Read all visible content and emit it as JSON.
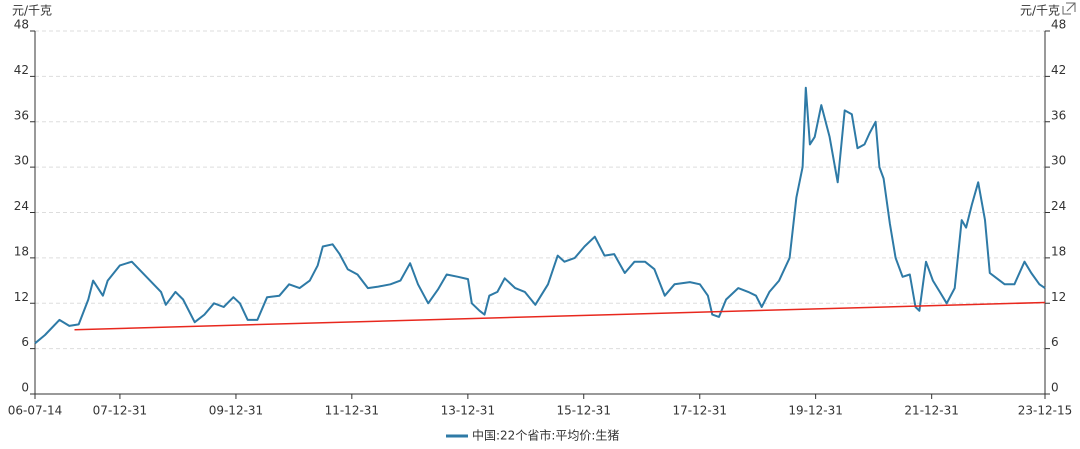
{
  "chart_data": {
    "type": "line",
    "y_label": "元/千克",
    "y2_label": "元/千克",
    "xlim": [
      "06-07-14",
      "23-12-15"
    ],
    "xticks": [
      "06-07-14",
      "07-12-31",
      "09-12-31",
      "11-12-31",
      "13-12-31",
      "15-12-31",
      "17-12-31",
      "19-12-31",
      "21-12-31",
      "23-12-15"
    ],
    "ylim": [
      0,
      48
    ],
    "yticks": [
      0,
      6,
      12,
      18,
      24,
      30,
      36,
      42,
      48
    ],
    "y2lim": [
      0,
      48
    ],
    "y2ticks": [
      0,
      6,
      12,
      18,
      24,
      30,
      36,
      42,
      48
    ],
    "grid": true,
    "series": [
      {
        "name": "中国:22个省市:平均价:生猪",
        "color": "#2e7aa6",
        "x": [
          "06-07-14",
          "06-09-15",
          "06-12-15",
          "07-02-15",
          "07-04-15",
          "07-06-15",
          "07-07-15",
          "07-09-15",
          "07-10-15",
          "07-12-31",
          "08-03-15",
          "08-06-15",
          "08-09-15",
          "08-10-15",
          "08-12-15",
          "09-02-01",
          "09-04-15",
          "09-06-15",
          "09-08-15",
          "09-10-15",
          "09-12-15",
          "10-01-25",
          "10-03-15",
          "10-05-15",
          "10-07-15",
          "10-10-01",
          "10-12-01",
          "11-02-05",
          "11-04-10",
          "11-05-30",
          "11-07-01",
          "11-09-01",
          "11-10-15",
          "11-12-05",
          "12-02-05",
          "12-04-10",
          "12-06-15",
          "12-08-30",
          "12-11-01",
          "13-01-01",
          "13-02-20",
          "13-04-25",
          "13-06-25",
          "13-08-20",
          "13-10-30",
          "14-01-01",
          "14-01-25",
          "14-03-15",
          "14-04-15",
          "14-05-15",
          "14-07-05",
          "14-08-20",
          "14-10-25",
          "14-12-25",
          "15-03-01",
          "15-05-20",
          "15-07-20",
          "15-09-01",
          "15-11-05",
          "16-01-05",
          "16-03-10",
          "16-05-10",
          "16-07-10",
          "16-09-15",
          "16-11-15",
          "17-01-20",
          "17-03-20",
          "17-05-25",
          "17-07-25",
          "17-10-30",
          "18-01-01",
          "18-02-20",
          "18-03-20",
          "18-05-01",
          "18-06-15",
          "18-08-30",
          "18-11-01",
          "18-12-20",
          "19-01-25",
          "19-03-15",
          "19-05-15",
          "19-07-20",
          "19-09-01",
          "19-10-10",
          "19-10-30",
          "19-11-25",
          "19-12-25",
          "20-02-05",
          "20-03-28",
          "20-05-18",
          "20-07-01",
          "20-08-15",
          "20-09-20",
          "20-11-03",
          "20-12-05",
          "21-01-12",
          "21-02-05",
          "21-03-03",
          "21-04-12",
          "21-05-18",
          "21-07-01",
          "21-08-15",
          "21-09-20",
          "21-10-15",
          "21-11-25",
          "22-01-08",
          "22-02-20",
          "22-04-05",
          "22-05-25",
          "22-07-08",
          "22-08-05",
          "22-09-10",
          "22-10-20",
          "22-12-02",
          "23-01-01",
          "23-02-02",
          "23-04-05",
          "23-06-05",
          "23-08-08",
          "23-09-20",
          "23-11-10",
          "23-12-15"
        ],
        "values": [
          6.7,
          7.8,
          9.8,
          9.0,
          9.2,
          12.5,
          15,
          13,
          15,
          17,
          17.5,
          15.5,
          13.5,
          11.8,
          13.5,
          12.5,
          9.5,
          10.5,
          12,
          11.5,
          12.8,
          12,
          9.8,
          9.8,
          12.8,
          13,
          14.5,
          14,
          15,
          17,
          19.5,
          19.8,
          18.5,
          16.5,
          15.8,
          14,
          14.2,
          14.5,
          15,
          17.3,
          14.5,
          12,
          13.8,
          15.8,
          15.5,
          15.2,
          12,
          11,
          10.5,
          13,
          13.5,
          15.3,
          14,
          13.5,
          11.8,
          14.5,
          18.3,
          17.5,
          18,
          19.5,
          20.8,
          18.3,
          18.5,
          16,
          17.5,
          17.5,
          16.5,
          13,
          14.5,
          14.8,
          14.5,
          13,
          10.5,
          10.2,
          12.5,
          14,
          13.5,
          13,
          11.5,
          13.5,
          15,
          18,
          26,
          30,
          40.5,
          33,
          34,
          38.2,
          34,
          28,
          37.5,
          37,
          32.5,
          33,
          34.5,
          36,
          30,
          28.5,
          22.5,
          18,
          15.5,
          15.8,
          11.5,
          11,
          17.5,
          15,
          13.5,
          12,
          14,
          23,
          22,
          25,
          28,
          23,
          16,
          15.5,
          14.5,
          14.5,
          17.5,
          16,
          14.5,
          14
        ]
      }
    ],
    "trendline": {
      "color": "#e8281e",
      "x": [
        "07-03-20",
        "23-12-15"
      ],
      "values": [
        8.5,
        12.1
      ]
    }
  }
}
